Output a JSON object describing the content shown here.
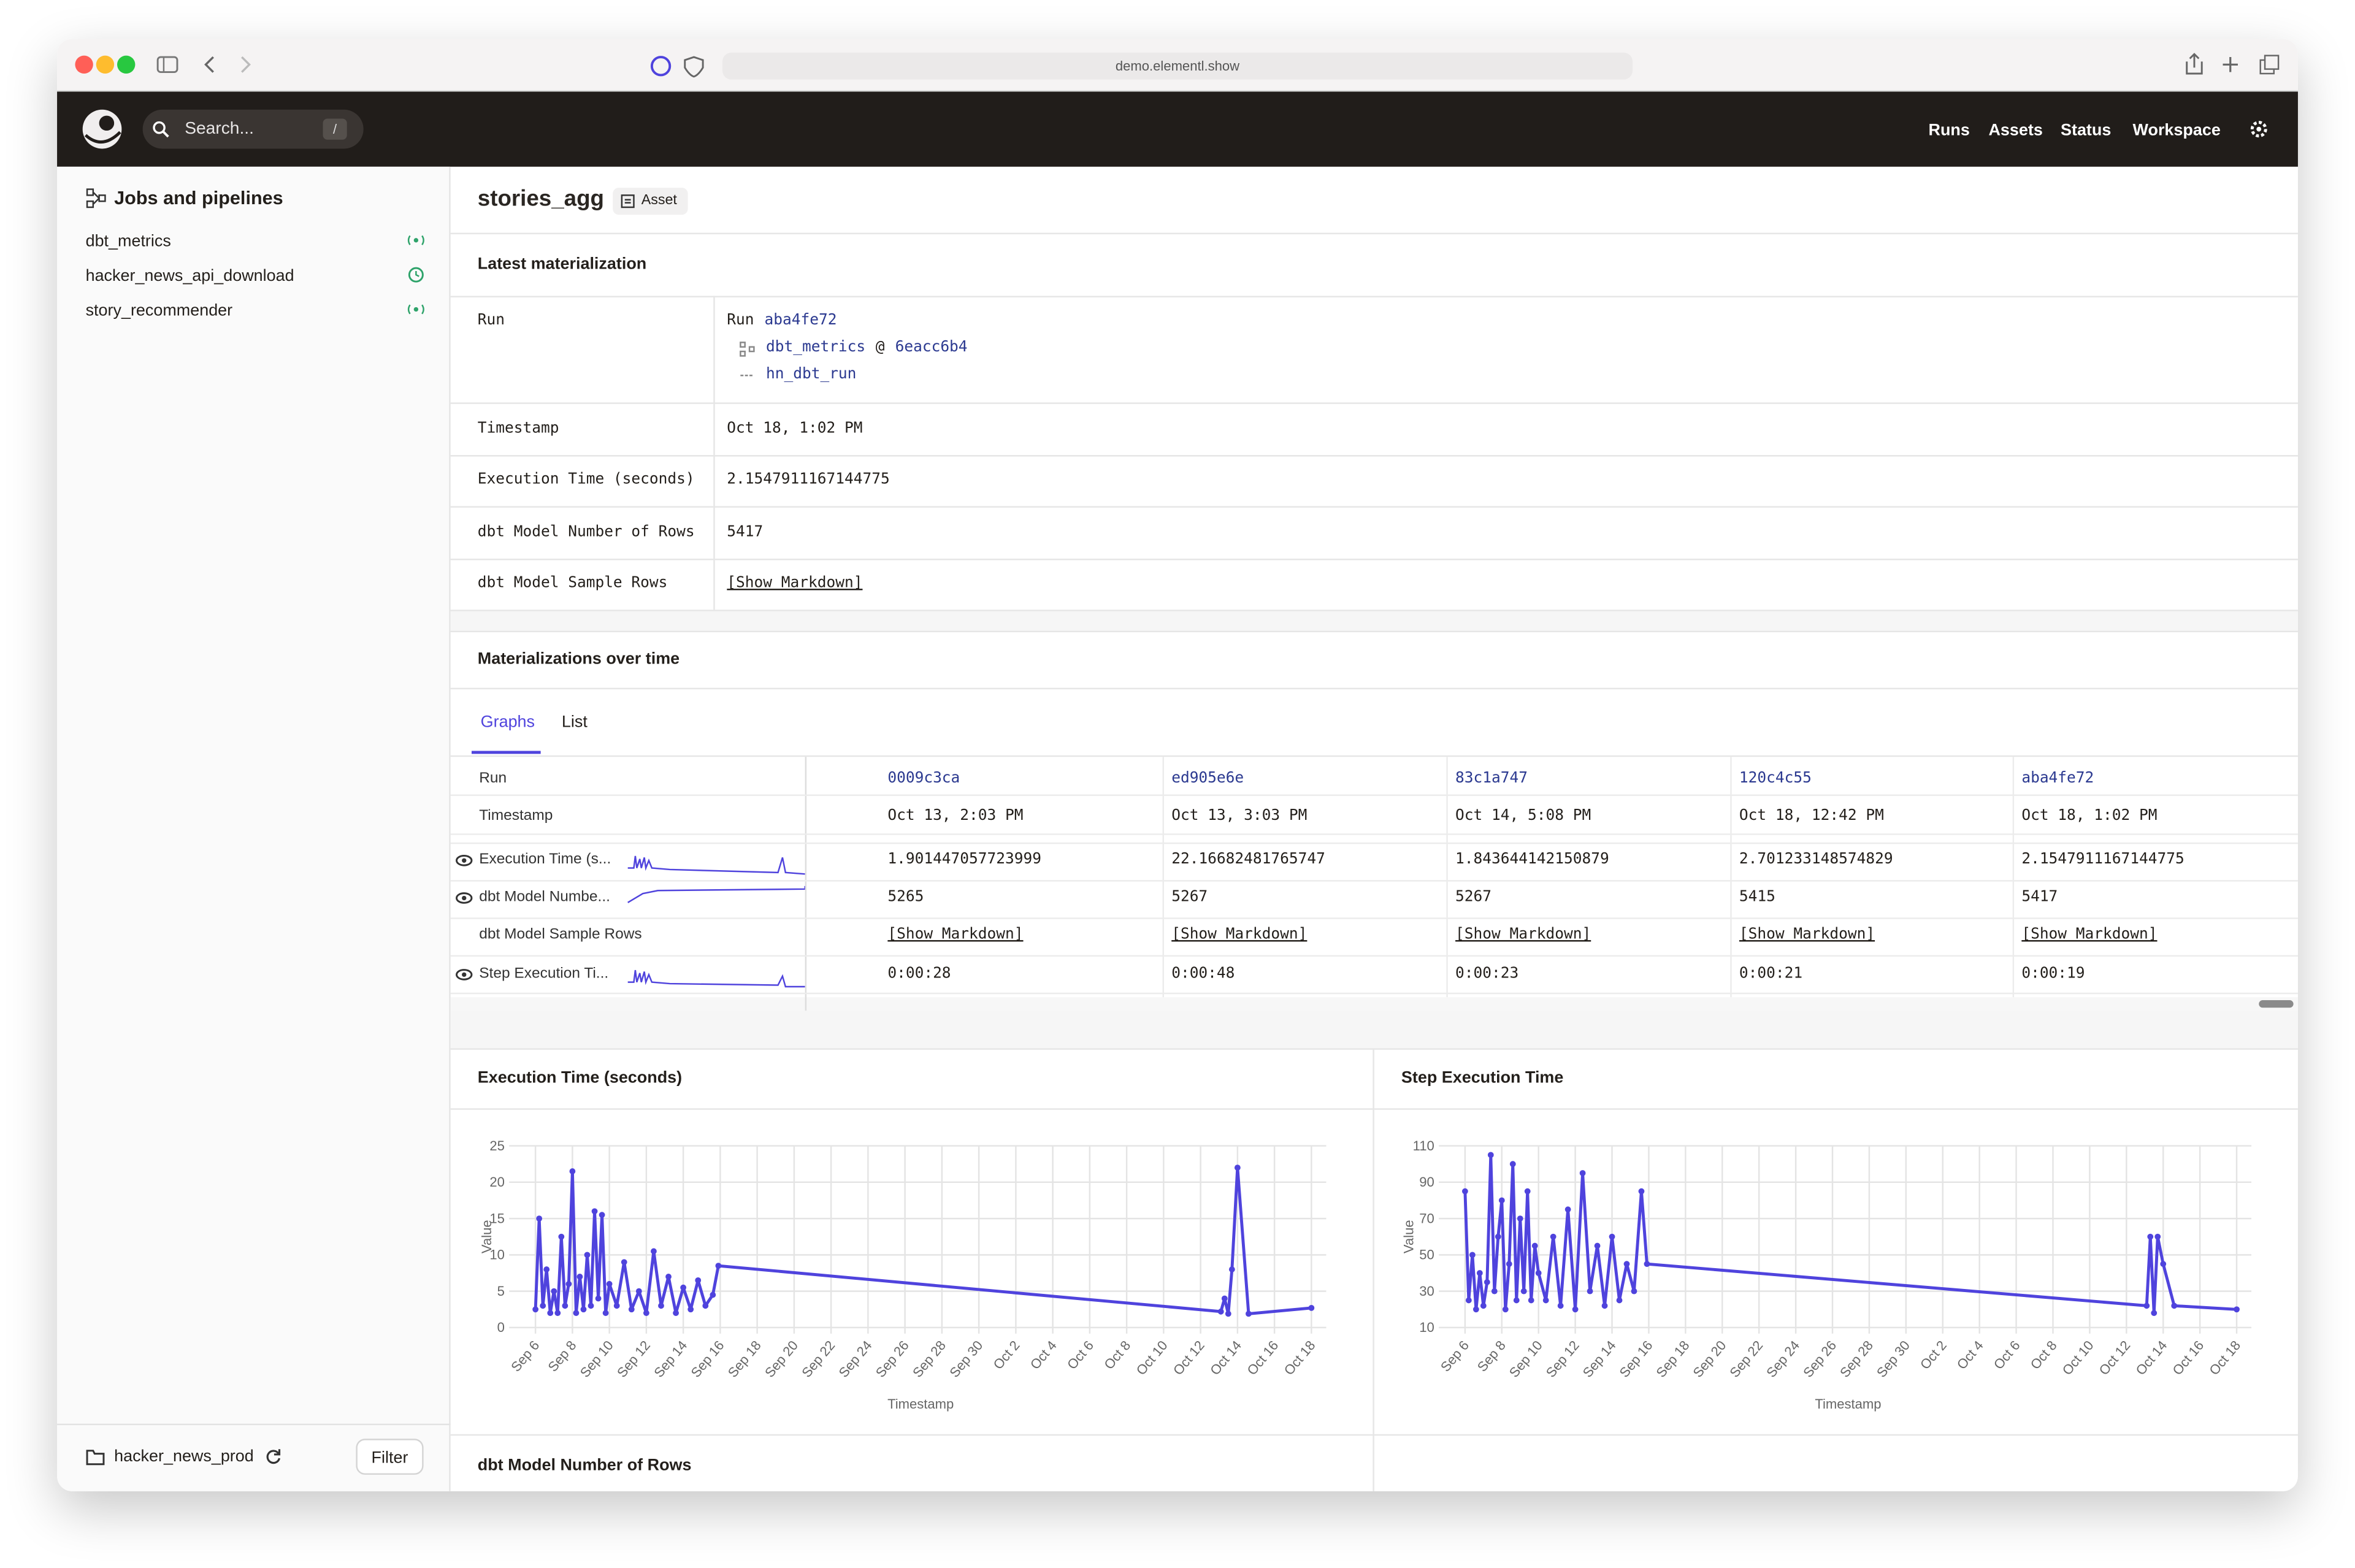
{
  "browser": {
    "url": "demo.elementl.show"
  },
  "nav": {
    "search": "Search...",
    "shortcut": "/",
    "links": [
      "Runs",
      "Assets",
      "Status",
      "Workspace"
    ]
  },
  "sidebar": {
    "title": "Jobs and pipelines",
    "items": [
      "dbt_metrics",
      "hacker_news_api_download",
      "story_recommender"
    ],
    "location": "hacker_news_prod",
    "filter": "Filter"
  },
  "asset": {
    "name": "stories_agg",
    "badge": "Asset"
  },
  "latest": {
    "title": "Latest materialization",
    "run": {
      "label": "Run",
      "prefix": "Run",
      "id": "aba4fe72",
      "job": "dbt_metrics",
      "at": "@",
      "snapshot": "6eacc6b4",
      "step": "hn_dbt_run"
    },
    "rows": [
      [
        "Timestamp",
        "Oct 18, 1:02 PM"
      ],
      [
        "Execution Time (seconds)",
        "2.1547911167144775"
      ],
      [
        "dbt Model Number of Rows",
        "5417"
      ],
      [
        "dbt Model Sample Rows",
        "[Show Markdown]"
      ]
    ]
  },
  "over_time": {
    "title": "Materializations over time",
    "tabs": [
      "Graphs",
      "List"
    ],
    "row_labels": [
      "Run",
      "Timestamp",
      "Execution Time (s...",
      "dbt Model Numbe...",
      "dbt Model Sample Rows",
      "Step Execution Ti..."
    ],
    "columns": [
      [
        "0009c3ca",
        "Oct 13, 2:03 PM",
        "1.901447057723999",
        "5265",
        "[Show Markdown]",
        "0:00:28"
      ],
      [
        "ed905e6e",
        "Oct 13, 3:03 PM",
        "22.16682481765747",
        "5267",
        "[Show Markdown]",
        "0:00:48"
      ],
      [
        "83c1a747",
        "Oct 14, 5:08 PM",
        "1.843644142150879",
        "5267",
        "[Show Markdown]",
        "0:00:23"
      ],
      [
        "120c4c55",
        "Oct 18, 12:42 PM",
        "2.701233148574829",
        "5415",
        "[Show Markdown]",
        "0:00:21"
      ],
      [
        "aba4fe72",
        "Oct 18, 1:02 PM",
        "2.1547911167144775",
        "5417",
        "[Show Markdown]",
        "0:00:19"
      ]
    ]
  },
  "charts": [
    {
      "type": "line",
      "title": "Execution Time (seconds)",
      "x_label": "Timestamp",
      "y_label": "Value",
      "grid": true,
      "xlim": [
        4.9,
        48.8
      ],
      "xticks": [
        {
          "value": 6,
          "label": "Sep 6"
        },
        {
          "value": 8,
          "label": "Sep 8"
        },
        {
          "value": 10,
          "label": "Sep 10"
        },
        {
          "value": 12,
          "label": "Sep 12"
        },
        {
          "value": 14,
          "label": "Sep 14"
        },
        {
          "value": 16,
          "label": "Sep 16"
        },
        {
          "value": 18,
          "label": "Sep 18"
        },
        {
          "value": 20,
          "label": "Sep 20"
        },
        {
          "value": 22,
          "label": "Sep 22"
        },
        {
          "value": 24,
          "label": "Sep 24"
        },
        {
          "value": 26,
          "label": "Sep 26"
        },
        {
          "value": 28,
          "label": "Sep 28"
        },
        {
          "value": 30,
          "label": "Sep 30"
        },
        {
          "value": 32,
          "label": "Oct 2"
        },
        {
          "value": 34,
          "label": "Oct 4"
        },
        {
          "value": 36,
          "label": "Oct 6"
        },
        {
          "value": 38,
          "label": "Oct 8"
        },
        {
          "value": 40,
          "label": "Oct 10"
        },
        {
          "value": 42,
          "label": "Oct 12"
        },
        {
          "value": 44,
          "label": "Oct 14"
        },
        {
          "value": 46,
          "label": "Oct 16"
        },
        {
          "value": 48,
          "label": "Oct 18"
        }
      ],
      "ylim": [
        0,
        25
      ],
      "yticks": [
        0,
        5,
        10,
        15,
        20,
        25
      ],
      "x": [
        6.0,
        6.2,
        6.4,
        6.6,
        6.8,
        7.0,
        7.2,
        7.4,
        7.6,
        7.8,
        8.0,
        8.2,
        8.4,
        8.6,
        8.8,
        9.0,
        9.2,
        9.4,
        9.6,
        9.8,
        10.0,
        10.4,
        10.8,
        11.2,
        11.6,
        12.0,
        12.4,
        12.8,
        13.2,
        13.6,
        14.0,
        14.4,
        14.8,
        15.2,
        15.6,
        15.9,
        43.1,
        43.3,
        43.5,
        43.7,
        44.0,
        44.6,
        48.0
      ],
      "series": [
        {
          "color": "#4f43dd",
          "values": [
            2.5,
            15,
            3,
            8,
            2,
            5,
            2,
            12.5,
            3,
            6,
            21.5,
            2,
            7,
            2.5,
            10,
            3,
            16,
            4,
            15.5,
            2,
            6,
            3,
            9,
            2.5,
            5,
            2,
            10.5,
            3,
            7,
            2,
            5.5,
            2.5,
            6.5,
            3,
            4.5,
            8.5,
            2.2,
            4,
            1.9,
            8,
            22,
            1.9,
            2.7
          ]
        }
      ]
    },
    {
      "type": "line",
      "title": "Step Execution Time",
      "x_label": "Timestamp",
      "y_label": "Value",
      "grid": true,
      "xlim": [
        4.9,
        48.8
      ],
      "xticks": [
        {
          "value": 6,
          "label": "Sep 6"
        },
        {
          "value": 8,
          "label": "Sep 8"
        },
        {
          "value": 10,
          "label": "Sep 10"
        },
        {
          "value": 12,
          "label": "Sep 12"
        },
        {
          "value": 14,
          "label": "Sep 14"
        },
        {
          "value": 16,
          "label": "Sep 16"
        },
        {
          "value": 18,
          "label": "Sep 18"
        },
        {
          "value": 20,
          "label": "Sep 20"
        },
        {
          "value": 22,
          "label": "Sep 22"
        },
        {
          "value": 24,
          "label": "Sep 24"
        },
        {
          "value": 26,
          "label": "Sep 26"
        },
        {
          "value": 28,
          "label": "Sep 28"
        },
        {
          "value": 30,
          "label": "Sep 30"
        },
        {
          "value": 32,
          "label": "Oct 2"
        },
        {
          "value": 34,
          "label": "Oct 4"
        },
        {
          "value": 36,
          "label": "Oct 6"
        },
        {
          "value": 38,
          "label": "Oct 8"
        },
        {
          "value": 40,
          "label": "Oct 10"
        },
        {
          "value": 42,
          "label": "Oct 12"
        },
        {
          "value": 44,
          "label": "Oct 14"
        },
        {
          "value": 46,
          "label": "Oct 16"
        },
        {
          "value": 48,
          "label": "Oct 18"
        }
      ],
      "ylim": [
        10,
        110
      ],
      "yticks": [
        10,
        30,
        50,
        70,
        90,
        110
      ],
      "x": [
        6.0,
        6.2,
        6.4,
        6.6,
        6.8,
        7.0,
        7.2,
        7.4,
        7.6,
        7.8,
        8.0,
        8.2,
        8.4,
        8.6,
        8.8,
        9.0,
        9.2,
        9.4,
        9.6,
        9.8,
        10.0,
        10.4,
        10.8,
        11.2,
        11.6,
        12.0,
        12.4,
        12.8,
        13.2,
        13.6,
        14.0,
        14.4,
        14.8,
        15.2,
        15.6,
        15.9,
        43.1,
        43.3,
        43.5,
        43.7,
        44.0,
        44.6,
        48.0
      ],
      "series": [
        {
          "color": "#4f43dd",
          "values": [
            85,
            25,
            50,
            20,
            40,
            22,
            35,
            105,
            30,
            60,
            80,
            20,
            45,
            100,
            25,
            70,
            30,
            85,
            25,
            55,
            40,
            25,
            60,
            22,
            75,
            20,
            95,
            30,
            55,
            22,
            60,
            25,
            45,
            30,
            85,
            45,
            22,
            60,
            18,
            60,
            45,
            22,
            20
          ]
        }
      ]
    }
  ],
  "next_section": "dbt Model Number of Rows"
}
